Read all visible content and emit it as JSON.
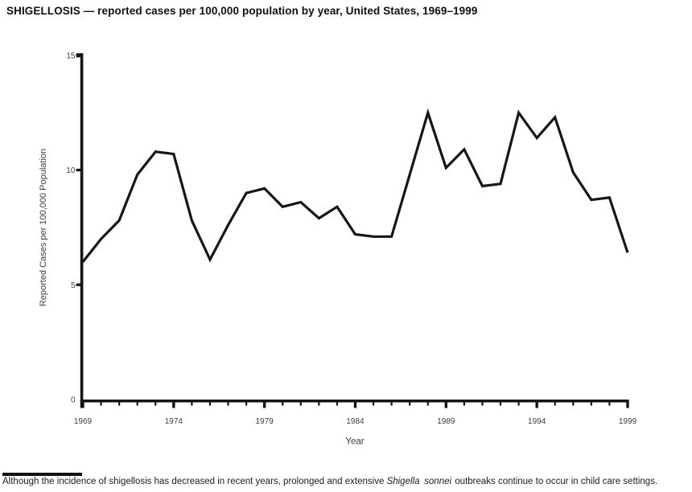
{
  "header": {
    "title": "SHIGELLOSIS — reported cases per 100,000 population by year, United States, 1969–1999"
  },
  "chart_data": {
    "type": "line",
    "title": "SHIGELLOSIS — reported cases per 100,000 population by year, United States, 1969–1999",
    "xlabel": "Year",
    "ylabel": "Reported Cases per 100,000 Population",
    "x": [
      1969,
      1970,
      1971,
      1972,
      1973,
      1974,
      1975,
      1976,
      1977,
      1978,
      1979,
      1980,
      1981,
      1982,
      1983,
      1984,
      1985,
      1986,
      1987,
      1988,
      1989,
      1990,
      1991,
      1992,
      1993,
      1994,
      1995,
      1996,
      1997,
      1998,
      1999
    ],
    "values": [
      6.0,
      7.0,
      7.8,
      9.8,
      10.8,
      10.7,
      7.8,
      6.1,
      7.6,
      9.0,
      9.2,
      8.4,
      8.6,
      7.9,
      8.4,
      7.2,
      7.1,
      7.1,
      9.8,
      12.5,
      10.1,
      10.9,
      9.3,
      9.4,
      12.5,
      11.4,
      12.3,
      9.9,
      8.7,
      8.8,
      6.4
    ],
    "xlim": [
      1969,
      1999
    ],
    "ylim": [
      0,
      15
    ],
    "yticks": [
      0,
      5,
      10,
      15
    ],
    "xticks_major": [
      1969,
      1974,
      1979,
      1984,
      1989,
      1994,
      1999
    ],
    "xticks_minor_every": 1,
    "grid": false,
    "legend": "none",
    "line_color": "#161616",
    "axis_color": "#141414",
    "tick_label_color": "#3c3c3c"
  },
  "footnote": {
    "before": "Although the incidence of shigellosis has decreased in recent years, prolonged and extensive ",
    "italic": "Shigella sonnei",
    "after": " outbreaks continue to occur in child care settings."
  }
}
